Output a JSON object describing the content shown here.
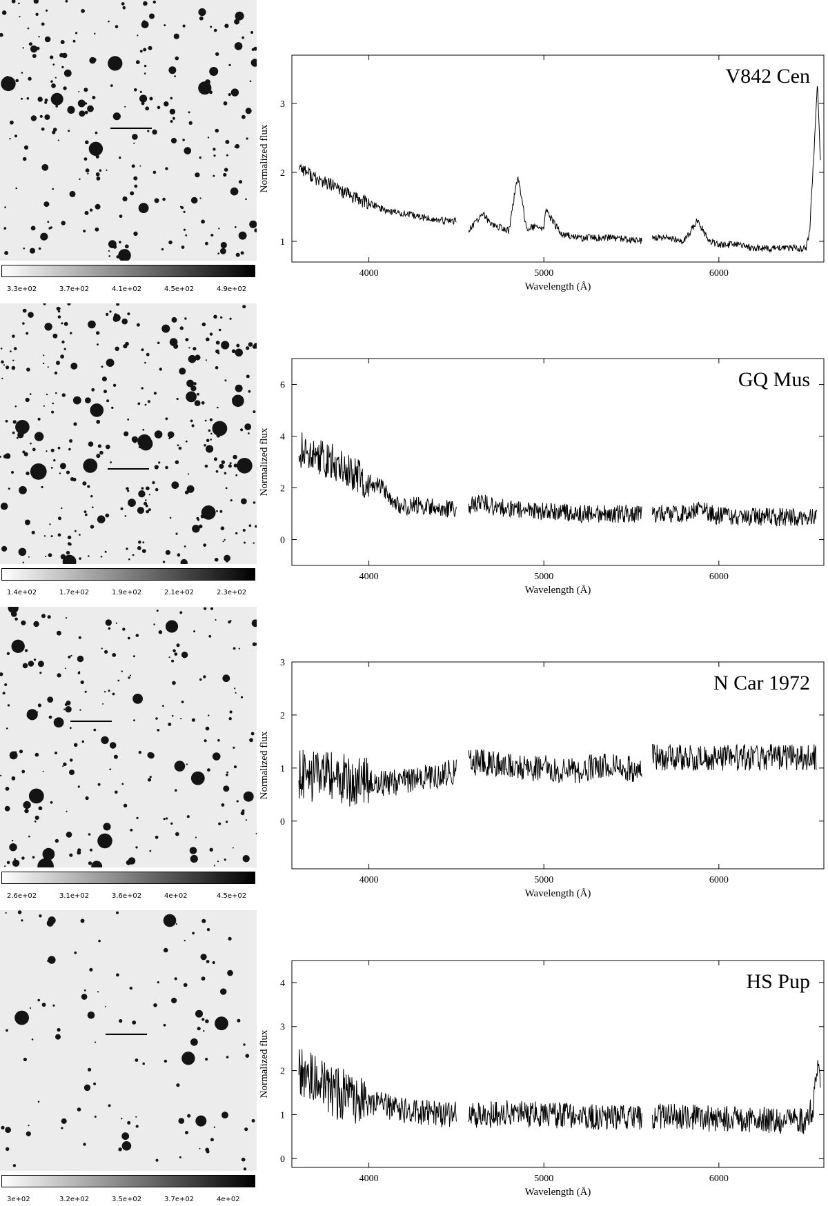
{
  "colors": {
    "line": "#000000",
    "sky": "#ececec",
    "star": "#141414"
  },
  "chart_data": [
    {
      "type": "line",
      "title": "V842 Cen",
      "xlabel": "Wavelength (Å)",
      "ylabel": "Normalized flux",
      "xlim": [
        3560,
        6600
      ],
      "ylim": [
        0.7,
        3.7
      ],
      "xticks": [
        4000,
        5000,
        6000
      ],
      "yticks": [
        1,
        2,
        3
      ],
      "colorbar_labels": [
        "3.3e+02",
        "3.7e+02",
        "4.1e+02",
        "4.5e+02",
        "4.9e+02"
      ],
      "series": [
        {
          "x": [
            3600,
            3700,
            3800,
            3900,
            4000,
            4100,
            4200,
            4300,
            4400,
            4500
          ],
          "values": [
            2.1,
            1.9,
            1.8,
            1.65,
            1.55,
            1.45,
            1.4,
            1.35,
            1.3,
            1.3
          ]
        },
        {
          "x": [
            4570,
            4650,
            4700,
            4800,
            4850,
            4900,
            5000,
            5010,
            5100,
            5200,
            5300,
            5400,
            5560
          ],
          "values": [
            1.15,
            1.4,
            1.25,
            1.15,
            1.95,
            1.2,
            1.2,
            1.45,
            1.1,
            1.05,
            1.05,
            1.05,
            1.0
          ]
        },
        {
          "x": [
            5620,
            5700,
            5800,
            5875,
            5950,
            6000,
            6100,
            6200,
            6300,
            6400,
            6500,
            6520,
            6550,
            6563,
            6580
          ],
          "values": [
            1.05,
            1.05,
            1.0,
            1.3,
            1.0,
            0.95,
            0.95,
            0.9,
            0.9,
            0.9,
            0.9,
            1.2,
            2.6,
            3.3,
            2.2
          ]
        }
      ],
      "noise": 0.05
    },
    {
      "type": "line",
      "title": "GQ Mus",
      "xlabel": "Wavelength (Å)",
      "ylabel": "Normalized flux",
      "xlim": [
        3560,
        6600
      ],
      "ylim": [
        -1.0,
        7.0
      ],
      "xticks": [
        4000,
        5000,
        6000
      ],
      "yticks": [
        0,
        2,
        4,
        6
      ],
      "colorbar_labels": [
        "1.4e+02",
        "1.7e+02",
        "1.9e+02",
        "2.1e+02",
        "2.3e+02"
      ],
      "series": [
        {
          "x": [
            3600,
            3700,
            3800,
            3900,
            4000,
            4100,
            4150,
            4200,
            4300,
            4400,
            4500
          ],
          "values": [
            3.5,
            3.2,
            3.0,
            2.6,
            2.2,
            1.9,
            1.4,
            1.3,
            1.3,
            1.2,
            1.2
          ]
        },
        {
          "x": [
            4570,
            4650,
            4700,
            4800,
            4900,
            5000,
            5200,
            5400,
            5560
          ],
          "values": [
            1.3,
            1.5,
            1.3,
            1.2,
            1.1,
            1.1,
            1.0,
            1.0,
            1.0
          ]
        },
        {
          "x": [
            5620,
            5800,
            5875,
            6000,
            6200,
            6400,
            6560
          ],
          "values": [
            1.0,
            1.0,
            1.2,
            0.9,
            0.9,
            0.85,
            0.9
          ]
        }
      ],
      "noise": 0.35
    },
    {
      "type": "line",
      "title": "N Car 1972",
      "xlabel": "Wavelength (Å)",
      "ylabel": "Normalized flux",
      "xlim": [
        3560,
        6600
      ],
      "ylim": [
        -0.9,
        3.0
      ],
      "xticks": [
        4000,
        5000,
        6000
      ],
      "yticks": [
        0,
        1,
        2,
        3
      ],
      "colorbar_labels": [
        "2.6e+02",
        "3.1e+02",
        "3.6e+02",
        "4e+02",
        "4.5e+02"
      ],
      "series": [
        {
          "x": [
            3600,
            3700,
            3800,
            3900,
            4000,
            4100,
            4200,
            4300,
            4400,
            4500
          ],
          "values": [
            0.9,
            0.8,
            0.8,
            0.75,
            0.75,
            0.7,
            0.75,
            0.8,
            0.85,
            0.95
          ]
        },
        {
          "x": [
            4570,
            4700,
            4800,
            4900,
            5000,
            5100,
            5200,
            5300,
            5400,
            5560
          ],
          "values": [
            1.1,
            1.1,
            1.05,
            1.0,
            1.0,
            0.95,
            0.95,
            1.05,
            1.05,
            0.95
          ]
        },
        {
          "x": [
            5620,
            5800,
            6000,
            6200,
            6400,
            6560
          ],
          "values": [
            1.2,
            1.2,
            1.2,
            1.2,
            1.2,
            1.2
          ]
        }
      ],
      "noise": 0.25
    },
    {
      "type": "line",
      "title": "HS Pup",
      "xlabel": "Wavelength (Å)",
      "ylabel": "Normalized flux",
      "xlim": [
        3560,
        6600
      ],
      "ylim": [
        -0.2,
        4.5
      ],
      "xticks": [
        4000,
        5000,
        6000
      ],
      "yticks": [
        0,
        1,
        2,
        3,
        4
      ],
      "colorbar_labels": [
        "3e+02",
        "3.2e+02",
        "3.5e+02",
        "3.7e+02",
        "4e+02"
      ],
      "series": [
        {
          "x": [
            3600,
            3700,
            3800,
            3900,
            4000,
            4100,
            4200,
            4300,
            4400,
            4500
          ],
          "values": [
            2.0,
            1.8,
            1.5,
            1.4,
            1.3,
            1.2,
            1.1,
            1.05,
            1.0,
            1.0
          ]
        },
        {
          "x": [
            4570,
            4700,
            4800,
            4900,
            5000,
            5200,
            5400,
            5560
          ],
          "values": [
            0.95,
            1.0,
            1.05,
            1.0,
            1.0,
            0.95,
            0.95,
            0.95
          ]
        },
        {
          "x": [
            5620,
            5800,
            6000,
            6200,
            6400,
            6500,
            6540,
            6563,
            6580
          ],
          "values": [
            0.95,
            0.95,
            0.9,
            0.9,
            0.85,
            0.85,
            1.2,
            2.2,
            1.7
          ]
        }
      ],
      "noise": 0.3
    }
  ]
}
